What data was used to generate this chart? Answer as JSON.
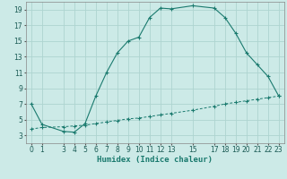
{
  "xlabel": "Humidex (Indice chaleur)",
  "ylabel": "",
  "bg_color": "#cceae7",
  "grid_color": "#aed4d0",
  "line_color": "#1a7a6e",
  "upper_x": [
    0,
    1,
    3,
    4,
    5,
    6,
    7,
    8,
    9,
    10,
    11,
    12,
    13,
    15,
    17,
    18,
    19,
    20,
    21,
    22,
    23
  ],
  "upper_y": [
    7.0,
    4.4,
    3.5,
    3.4,
    4.5,
    8.0,
    11.0,
    13.5,
    15.0,
    15.5,
    18.0,
    19.2,
    19.1,
    19.5,
    19.2,
    18.0,
    16.0,
    13.5,
    12.0,
    10.5,
    8.0
  ],
  "lower_x": [
    0,
    1,
    3,
    4,
    5,
    6,
    7,
    8,
    9,
    10,
    11,
    12,
    13,
    15,
    17,
    18,
    19,
    20,
    21,
    22,
    23
  ],
  "lower_y": [
    3.8,
    4.0,
    4.1,
    4.2,
    4.3,
    4.5,
    4.7,
    4.9,
    5.1,
    5.2,
    5.4,
    5.6,
    5.8,
    6.2,
    6.7,
    7.0,
    7.2,
    7.4,
    7.6,
    7.8,
    8.0
  ],
  "xlim": [
    -0.5,
    23.5
  ],
  "ylim": [
    2,
    20
  ],
  "yticks": [
    3,
    5,
    7,
    9,
    11,
    13,
    15,
    17,
    19
  ],
  "xticks": [
    0,
    1,
    3,
    4,
    5,
    6,
    7,
    8,
    9,
    10,
    11,
    12,
    13,
    15,
    17,
    18,
    19,
    20,
    21,
    22,
    23
  ],
  "tick_fontsize": 5.5,
  "xlabel_fontsize": 6.5
}
